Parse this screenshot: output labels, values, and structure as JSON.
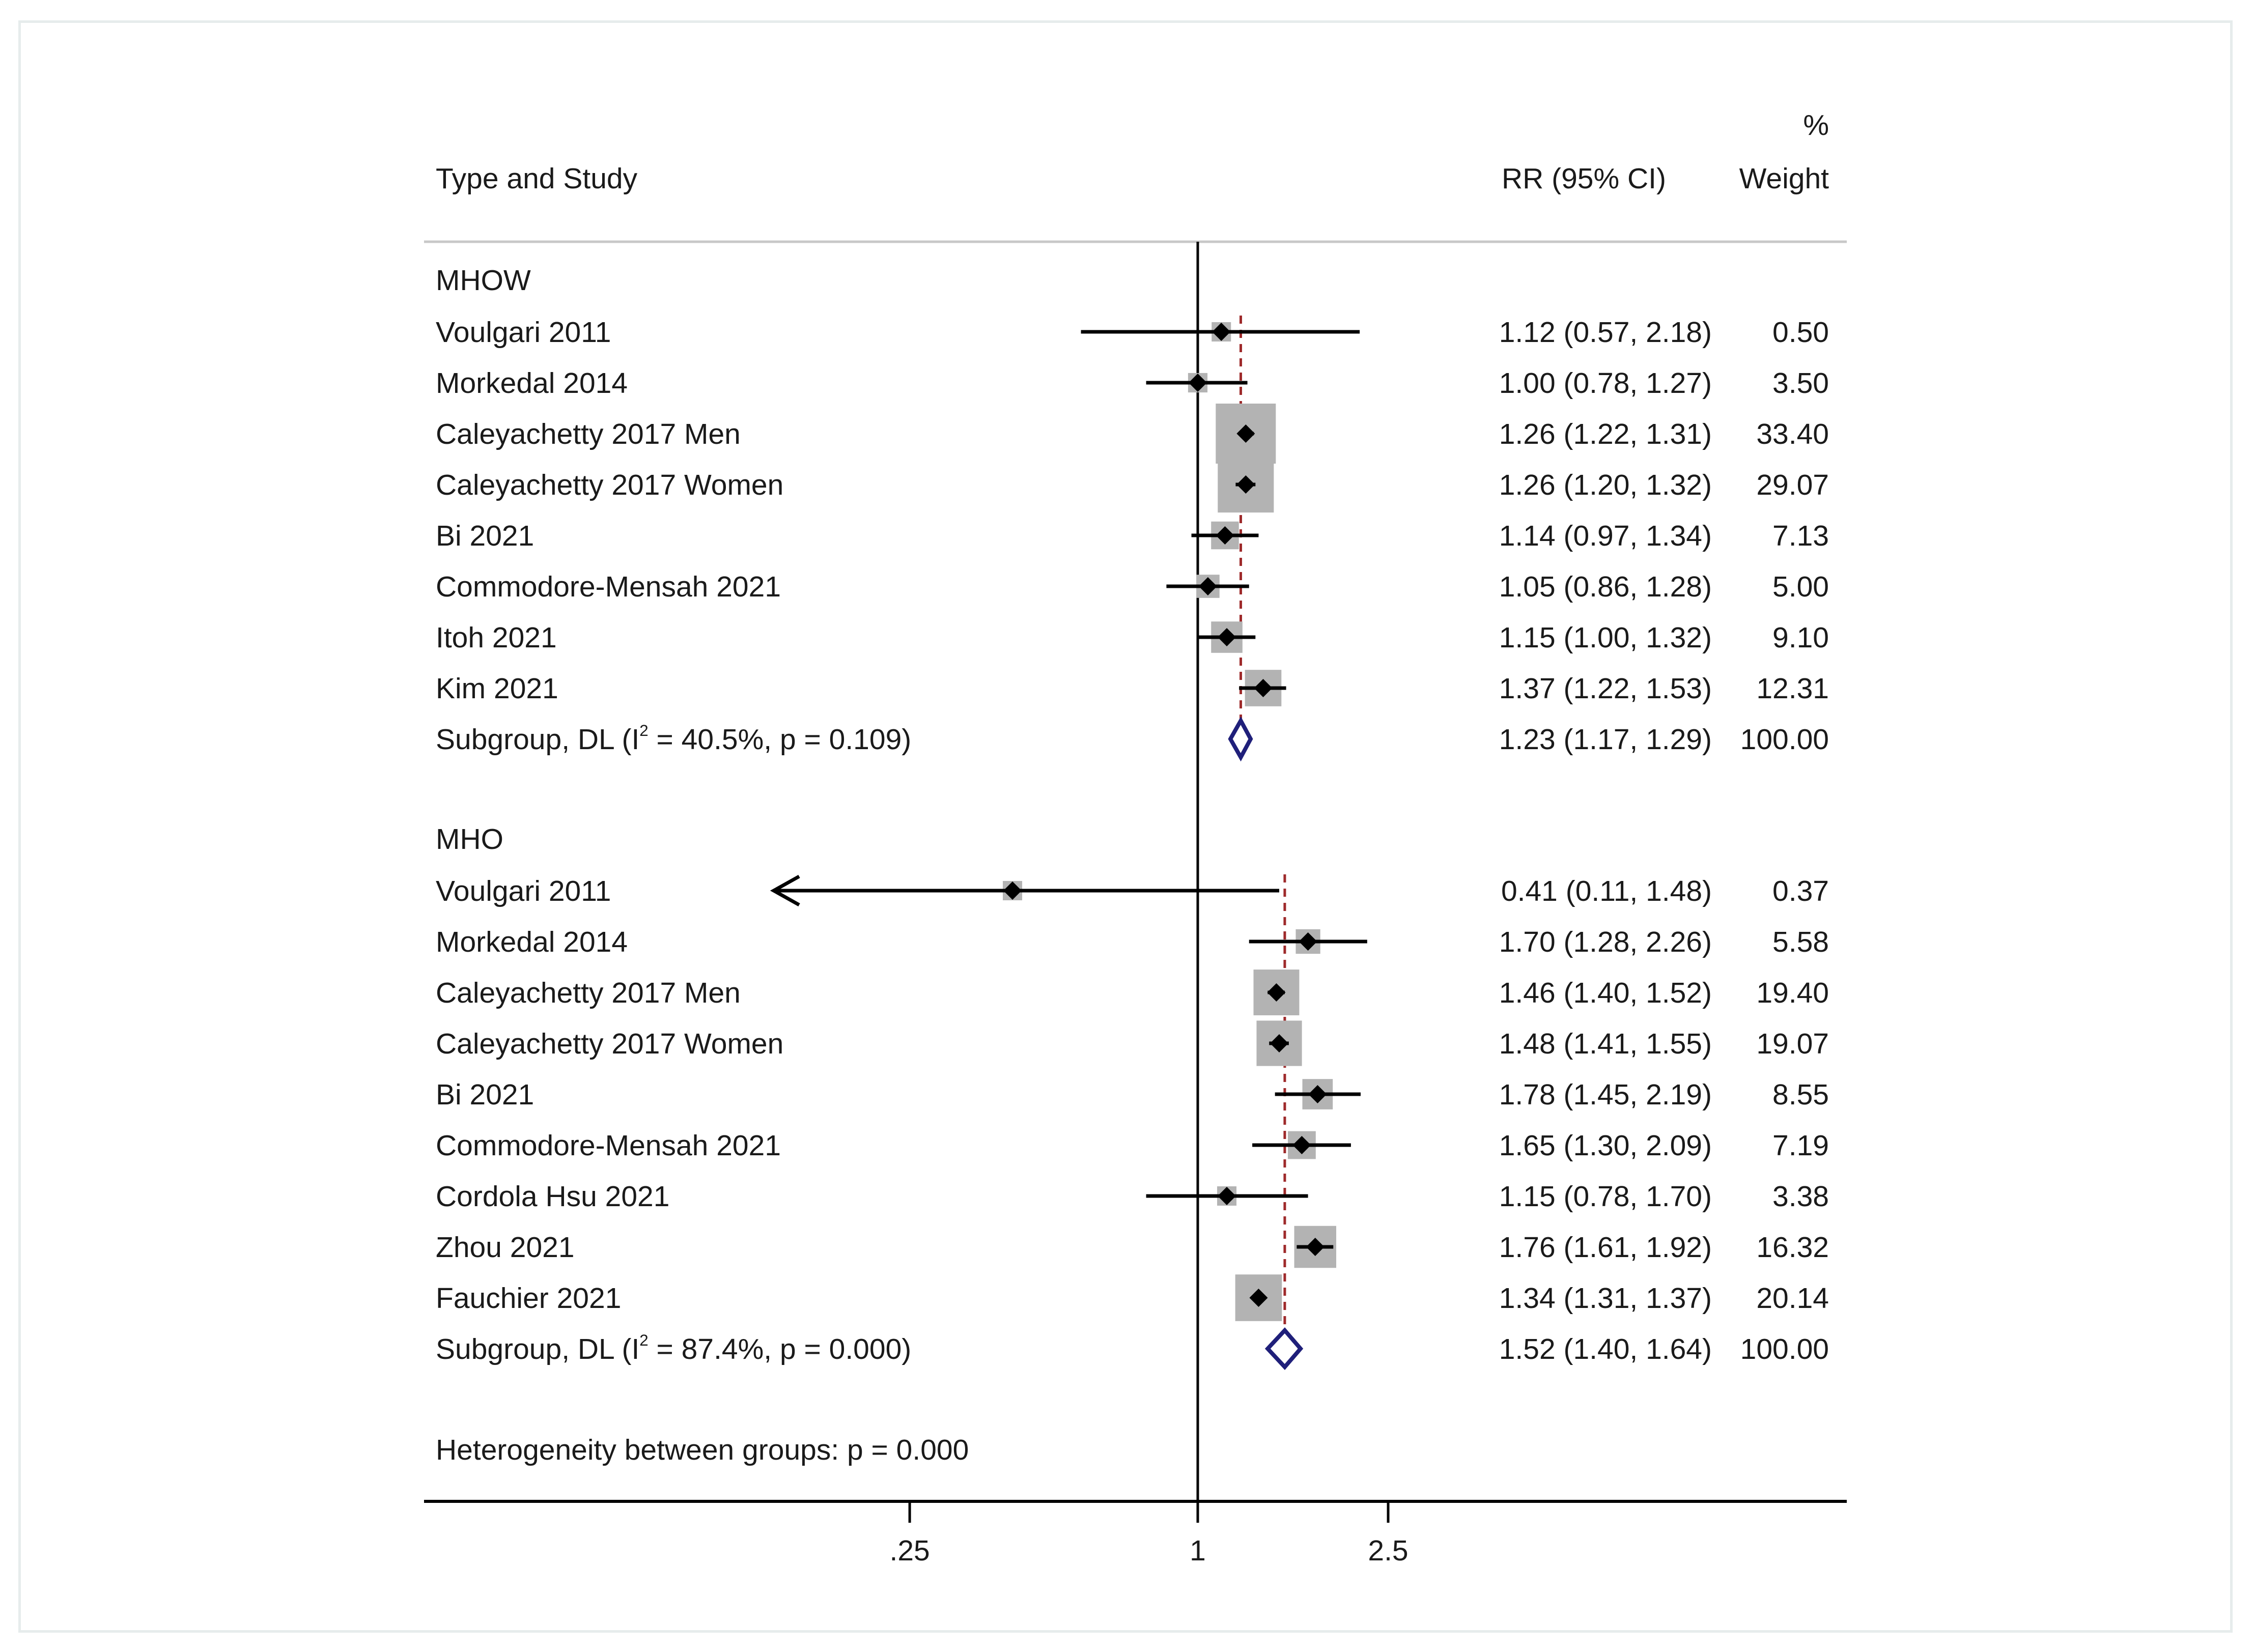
{
  "chart_data": {
    "type": "forest",
    "header": {
      "weight_percent": "%",
      "study_col": "Type and Study",
      "rr_col": "RR (95% CI)",
      "weight_col": "Weight"
    },
    "x_axis": {
      "scale": "log",
      "reference_line": 1,
      "ticks": [
        {
          "value": 0.25,
          "label": ".25"
        },
        {
          "value": 1,
          "label": "1"
        },
        {
          "value": 2.5,
          "label": "2.5"
        }
      ]
    },
    "groups": [
      {
        "name": "MHOW",
        "studies": [
          {
            "label": "Voulgari 2011",
            "rr": 1.12,
            "lo": 0.57,
            "hi": 2.18,
            "weight": 0.5,
            "ci_text": "1.12 (0.57, 2.18)",
            "weight_text": "0.50"
          },
          {
            "label": "Morkedal 2014",
            "rr": 1.0,
            "lo": 0.78,
            "hi": 1.27,
            "weight": 3.5,
            "ci_text": "1.00 (0.78, 1.27)",
            "weight_text": "3.50"
          },
          {
            "label": "Caleyachetty 2017 Men",
            "rr": 1.26,
            "lo": 1.22,
            "hi": 1.31,
            "weight": 33.4,
            "ci_text": "1.26 (1.22, 1.31)",
            "weight_text": "33.40"
          },
          {
            "label": "Caleyachetty 2017 Women",
            "rr": 1.26,
            "lo": 1.2,
            "hi": 1.32,
            "weight": 29.07,
            "ci_text": "1.26 (1.20, 1.32)",
            "weight_text": "29.07"
          },
          {
            "label": "Bi 2021",
            "rr": 1.14,
            "lo": 0.97,
            "hi": 1.34,
            "weight": 7.13,
            "ci_text": "1.14 (0.97, 1.34)",
            "weight_text": "7.13"
          },
          {
            "label": "Commodore-Mensah 2021",
            "rr": 1.05,
            "lo": 0.86,
            "hi": 1.28,
            "weight": 5.0,
            "ci_text": "1.05 (0.86, 1.28)",
            "weight_text": "5.00"
          },
          {
            "label": "Itoh 2021",
            "rr": 1.15,
            "lo": 1.0,
            "hi": 1.32,
            "weight": 9.1,
            "ci_text": "1.15 (1.00, 1.32)",
            "weight_text": "9.10"
          },
          {
            "label": "Kim 2021",
            "rr": 1.37,
            "lo": 1.22,
            "hi": 1.53,
            "weight": 12.31,
            "ci_text": "1.37 (1.22, 1.53)",
            "weight_text": "12.31"
          }
        ],
        "subgroup": {
          "label_prefix": "Subgroup, DL (I",
          "sup": "2",
          "label_suffix": " = 40.5%, p = 0.109)",
          "rr": 1.23,
          "lo": 1.17,
          "hi": 1.29,
          "ci_text": "1.23 (1.17, 1.29)",
          "weight_text": "100.00"
        }
      },
      {
        "name": "MHO",
        "studies": [
          {
            "label": "Voulgari 2011",
            "rr": 0.41,
            "lo": 0.11,
            "hi": 1.48,
            "weight": 0.37,
            "ci_text": "0.41 (0.11, 1.48)",
            "weight_text": "0.37",
            "arrow_left": true
          },
          {
            "label": "Morkedal 2014",
            "rr": 1.7,
            "lo": 1.28,
            "hi": 2.26,
            "weight": 5.58,
            "ci_text": "1.70 (1.28, 2.26)",
            "weight_text": "5.58"
          },
          {
            "label": "Caleyachetty 2017 Men",
            "rr": 1.46,
            "lo": 1.4,
            "hi": 1.52,
            "weight": 19.4,
            "ci_text": "1.46 (1.40, 1.52)",
            "weight_text": "19.40"
          },
          {
            "label": "Caleyachetty 2017 Women",
            "rr": 1.48,
            "lo": 1.41,
            "hi": 1.55,
            "weight": 19.07,
            "ci_text": "1.48 (1.41, 1.55)",
            "weight_text": "19.07"
          },
          {
            "label": "Bi 2021",
            "rr": 1.78,
            "lo": 1.45,
            "hi": 2.19,
            "weight": 8.55,
            "ci_text": "1.78 (1.45, 2.19)",
            "weight_text": "8.55"
          },
          {
            "label": "Commodore-Mensah 2021",
            "rr": 1.65,
            "lo": 1.3,
            "hi": 2.09,
            "weight": 7.19,
            "ci_text": "1.65 (1.30, 2.09)",
            "weight_text": "7.19"
          },
          {
            "label": "Cordola Hsu 2021",
            "rr": 1.15,
            "lo": 0.78,
            "hi": 1.7,
            "weight": 3.38,
            "ci_text": "1.15 (0.78, 1.70)",
            "weight_text": "3.38"
          },
          {
            "label": "Zhou 2021",
            "rr": 1.76,
            "lo": 1.61,
            "hi": 1.92,
            "weight": 16.32,
            "ci_text": "1.76 (1.61, 1.92)",
            "weight_text": "16.32"
          },
          {
            "label": "Fauchier  2021",
            "rr": 1.34,
            "lo": 1.31,
            "hi": 1.37,
            "weight": 20.14,
            "ci_text": "1.34 (1.31, 1.37)",
            "weight_text": "20.14"
          }
        ],
        "subgroup": {
          "label_prefix": "Subgroup, DL (I",
          "sup": "2",
          "label_suffix": " = 87.4%, p = 0.000)",
          "rr": 1.52,
          "lo": 1.4,
          "hi": 1.64,
          "ci_text": "1.52 (1.40, 1.64)",
          "weight_text": "100.00"
        }
      }
    ],
    "footer": "Heterogeneity between groups: p = 0.000",
    "colors": {
      "text": "#1a1a1a",
      "line": "#000000",
      "box": "#b3b3b3",
      "pooled_line": "#9e2a2b",
      "diamond": "#1f1f7a",
      "rule": "#c8c8c8"
    }
  }
}
